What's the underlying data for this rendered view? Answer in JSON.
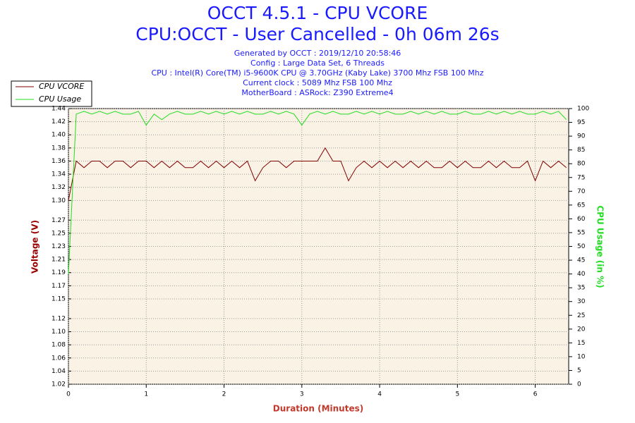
{
  "chart_data": {
    "type": "line",
    "title": "OCCT 4.5.1 - CPU VCORE",
    "subtitle": "CPU:OCCT - User Cancelled - 0h 06m 26s",
    "info": [
      "Generated by OCCT : 2019/12/10 20:58:46",
      "Config : Large Data Set, 6 Threads",
      "CPU : Intel(R) Core(TM) i5-9600K CPU @ 3.70GHz (Kaby Lake) 3700 Mhz FSB 100 Mhz",
      "Current clock : 5089 Mhz FSB 100 Mhz",
      "MotherBoard : ASRock: Z390 Extreme4"
    ],
    "x_label": "Duration (Minutes)",
    "y_label": "Voltage (V)",
    "y2_label": "CPU Usage (in %)",
    "x": [
      0,
      0.1,
      0.2,
      0.3,
      0.4,
      0.5,
      0.6,
      0.7,
      0.8,
      0.9,
      1,
      1.1,
      1.2,
      1.3,
      1.4,
      1.5,
      1.6,
      1.7,
      1.8,
      1.9,
      2,
      2.1,
      2.2,
      2.3,
      2.4,
      2.5,
      2.6,
      2.7,
      2.8,
      2.9,
      3,
      3.1,
      3.2,
      3.3,
      3.4,
      3.5,
      3.6,
      3.7,
      3.8,
      3.9,
      4,
      4.1,
      4.2,
      4.3,
      4.4,
      4.5,
      4.6,
      4.7,
      4.8,
      4.9,
      5,
      5.1,
      5.2,
      5.3,
      5.4,
      5.5,
      5.6,
      5.7,
      5.8,
      5.9,
      6,
      6.1,
      6.2,
      6.3,
      6.4
    ],
    "series": [
      {
        "name": "CPU VCORE",
        "color": "#800000",
        "values": [
          1.3,
          1.36,
          1.35,
          1.36,
          1.36,
          1.35,
          1.36,
          1.36,
          1.35,
          1.36,
          1.36,
          1.35,
          1.36,
          1.35,
          1.36,
          1.35,
          1.35,
          1.36,
          1.35,
          1.36,
          1.35,
          1.36,
          1.35,
          1.36,
          1.33,
          1.35,
          1.36,
          1.36,
          1.35,
          1.36,
          1.36,
          1.36,
          1.36,
          1.38,
          1.36,
          1.36,
          1.33,
          1.35,
          1.36,
          1.35,
          1.36,
          1.35,
          1.36,
          1.35,
          1.36,
          1.35,
          1.36,
          1.35,
          1.35,
          1.36,
          1.35,
          1.36,
          1.35,
          1.35,
          1.36,
          1.35,
          1.36,
          1.35,
          1.35,
          1.36,
          1.33,
          1.36,
          1.35,
          1.36,
          1.35
        ]
      },
      {
        "name": "CPU Usage",
        "color": "#22dd22",
        "axis": "y2",
        "values": [
          40,
          98,
          99,
          98,
          99,
          98,
          99,
          98,
          98,
          99,
          94,
          98,
          96,
          98,
          99,
          98,
          98,
          99,
          98,
          99,
          98,
          99,
          98,
          99,
          98,
          98,
          99,
          98,
          99,
          98,
          94,
          98,
          99,
          98,
          99,
          98,
          98,
          99,
          98,
          99,
          98,
          99,
          98,
          98,
          99,
          98,
          99,
          98,
          99,
          98,
          98,
          99,
          98,
          98,
          99,
          98,
          99,
          98,
          99,
          98,
          98,
          99,
          98,
          99,
          96
        ]
      }
    ],
    "xlim": [
      0,
      6.43
    ],
    "xticks": [
      0,
      1,
      2,
      3,
      4,
      5,
      6
    ],
    "ylim": [
      1.02,
      1.44
    ],
    "yticks": [
      {
        "value": 1.02,
        "label": "1.02"
      },
      {
        "value": 1.04,
        "label": "1.04"
      },
      {
        "value": 1.06,
        "label": "1.06"
      },
      {
        "value": 1.08,
        "label": "1.08"
      },
      {
        "value": 1.1,
        "label": "1.10"
      },
      {
        "value": 1.12,
        "label": "1.12"
      },
      {
        "value": 1.15,
        "label": "1.15"
      },
      {
        "value": 1.17,
        "label": "1.17"
      },
      {
        "value": 1.19,
        "label": "1.19"
      },
      {
        "value": 1.21,
        "label": "1.21"
      },
      {
        "value": 1.23,
        "label": "1.23"
      },
      {
        "value": 1.25,
        "label": "1.25"
      },
      {
        "value": 1.27,
        "label": "1.27"
      },
      {
        "value": 1.3,
        "label": "1.30"
      },
      {
        "value": 1.32,
        "label": "1.32"
      },
      {
        "value": 1.34,
        "label": "1.34"
      },
      {
        "value": 1.36,
        "label": "1.36"
      },
      {
        "value": 1.38,
        "label": "1.38"
      },
      {
        "value": 1.4,
        "label": "1.40"
      },
      {
        "value": 1.42,
        "label": "1.42"
      },
      {
        "value": 1.44,
        "label": "1.44"
      }
    ],
    "y2lim": [
      0,
      100
    ],
    "y2ticks": [
      0,
      5,
      10,
      15,
      20,
      25,
      30,
      35,
      40,
      45,
      50,
      55,
      60,
      65,
      70,
      75,
      80,
      85,
      90,
      95,
      100
    ],
    "grid": true
  }
}
